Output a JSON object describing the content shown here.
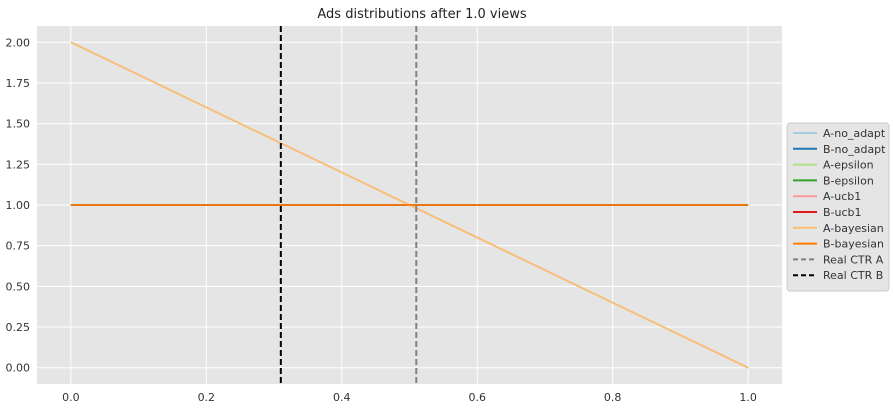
{
  "chart_data": {
    "type": "line",
    "title": "Ads distributions after 1.0 views",
    "xlabel": "",
    "ylabel": "",
    "xlim": [
      -0.05,
      1.05
    ],
    "ylim": [
      -0.1,
      2.1
    ],
    "xticks": [
      0.0,
      0.2,
      0.4,
      0.6,
      0.8,
      1.0
    ],
    "xtick_labels": [
      "0.0",
      "0.2",
      "0.4",
      "0.6",
      "0.8",
      "1.0"
    ],
    "yticks": [
      0.0,
      0.25,
      0.5,
      0.75,
      1.0,
      1.25,
      1.5,
      1.75,
      2.0
    ],
    "ytick_labels": [
      "0.00",
      "0.25",
      "0.50",
      "0.75",
      "1.00",
      "1.25",
      "1.50",
      "1.75",
      "2.00"
    ],
    "grid": true,
    "legend_position": "center-right-outside",
    "series": [
      {
        "name": "A-no_adapt",
        "x": [
          0.0,
          1.0
        ],
        "y": [
          2.0,
          0.0
        ],
        "color": "#a6cee3",
        "dash": "solid"
      },
      {
        "name": "B-no_adapt",
        "x": [
          0.0,
          1.0
        ],
        "y": [
          1.0,
          1.0
        ],
        "color": "#1f78b4",
        "dash": "solid"
      },
      {
        "name": "A-epsilon",
        "x": [
          0.0,
          1.0
        ],
        "y": [
          2.0,
          0.0
        ],
        "color": "#b2df8a",
        "dash": "solid"
      },
      {
        "name": "B-epsilon",
        "x": [
          0.0,
          1.0
        ],
        "y": [
          1.0,
          1.0
        ],
        "color": "#33a02c",
        "dash": "solid"
      },
      {
        "name": "A-ucb1",
        "x": [
          0.0,
          1.0
        ],
        "y": [
          2.0,
          0.0
        ],
        "color": "#fb9a99",
        "dash": "solid"
      },
      {
        "name": "B-ucb1",
        "x": [
          0.0,
          1.0
        ],
        "y": [
          1.0,
          1.0
        ],
        "color": "#e31a1c",
        "dash": "solid"
      },
      {
        "name": "A-bayesian",
        "x": [
          0.0,
          1.0
        ],
        "y": [
          2.0,
          0.0
        ],
        "color": "#fdbf6f",
        "dash": "solid"
      },
      {
        "name": "B-bayesian",
        "x": [
          0.0,
          1.0
        ],
        "y": [
          1.0,
          1.0
        ],
        "color": "#ff7f00",
        "dash": "solid"
      }
    ],
    "vlines": [
      {
        "name": "Real CTR A",
        "x": 0.51,
        "color": "#808080",
        "dash": "dashed"
      },
      {
        "name": "Real CTR B",
        "x": 0.31,
        "color": "#000000",
        "dash": "dashed"
      }
    ],
    "colors": {
      "plot_background": "#e5e5e5",
      "grid": "#ffffff",
      "text": "#333333",
      "title": "#222222",
      "legend_background": "#e5e5e5",
      "legend_border": "#cccccc"
    }
  }
}
